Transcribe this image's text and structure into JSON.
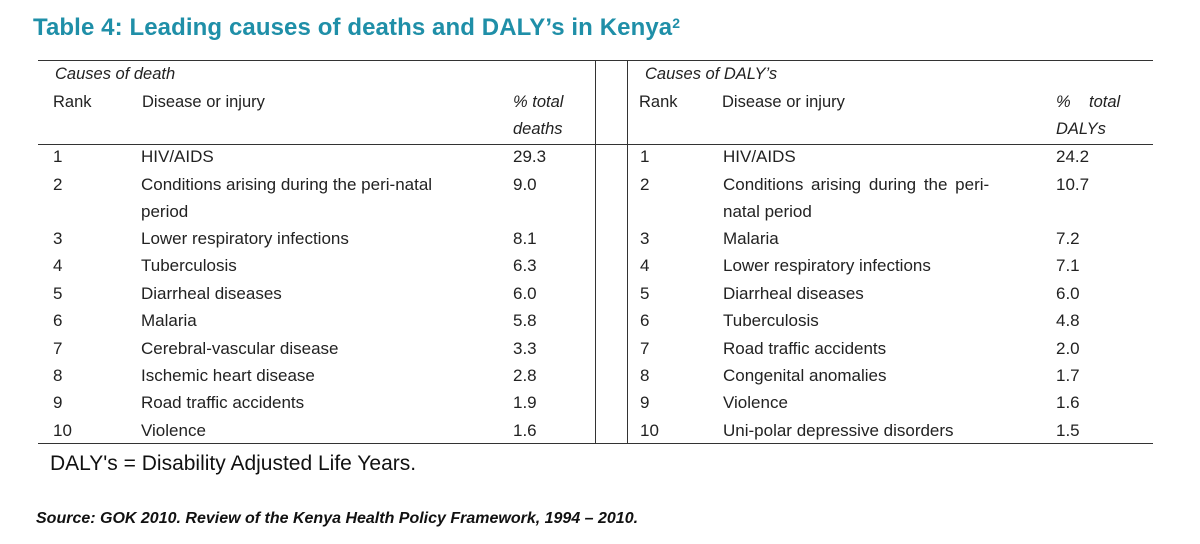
{
  "title": "Table 4: Leading causes of deaths and DALY’s in Kenya",
  "title_sup": "2",
  "left": {
    "section": "Causes of death",
    "col_rank": "Rank",
    "col_disease": "Disease or injury",
    "col_pct_1": "% total",
    "col_pct_2": "deaths",
    "rows": [
      {
        "rank": "1",
        "disease": "HIV/AIDS",
        "disease2": "",
        "pct": "29.3"
      },
      {
        "rank": "2",
        "disease": "Conditions arising during the peri-natal",
        "disease2": "period",
        "pct": "9.0"
      },
      {
        "rank": "3",
        "disease": "Lower respiratory infections",
        "disease2": "",
        "pct": "8.1"
      },
      {
        "rank": "4",
        "disease": "Tuberculosis",
        "disease2": "",
        "pct": "6.3"
      },
      {
        "rank": "5",
        "disease": "Diarrheal diseases",
        "disease2": "",
        "pct": "6.0"
      },
      {
        "rank": "6",
        "disease": "Malaria",
        "disease2": "",
        "pct": "5.8"
      },
      {
        "rank": "7",
        "disease": "Cerebral-vascular disease",
        "disease2": "",
        "pct": "3.3"
      },
      {
        "rank": "8",
        "disease": "Ischemic heart disease",
        "disease2": "",
        "pct": "2.8"
      },
      {
        "rank": "9",
        "disease": "Road traffic accidents",
        "disease2": "",
        "pct": "1.9"
      },
      {
        "rank": "10",
        "disease": "Violence",
        "disease2": "",
        "pct": "1.6"
      }
    ]
  },
  "right": {
    "section": "Causes of DALY’s",
    "col_rank": "Rank",
    "col_disease": "Disease or injury",
    "col_pct_1": "%    total",
    "col_pct_2": "DALYs",
    "rows": [
      {
        "rank": "1",
        "disease": "HIV/AIDS",
        "disease2": "",
        "pct": "24.2"
      },
      {
        "rank": "2",
        "disease": "Conditions arising during the peri-",
        "disease2": "natal period",
        "pct": "10.7"
      },
      {
        "rank": "3",
        "disease": "Malaria",
        "disease2": "",
        "pct": "7.2"
      },
      {
        "rank": "4",
        "disease": "Lower respiratory infections",
        "disease2": "",
        "pct": "7.1"
      },
      {
        "rank": "5",
        "disease": "Diarrheal diseases",
        "disease2": "",
        "pct": "6.0"
      },
      {
        "rank": "6",
        "disease": "Tuberculosis",
        "disease2": "",
        "pct": "4.8"
      },
      {
        "rank": "7",
        "disease": "Road traffic accidents",
        "disease2": "",
        "pct": "2.0"
      },
      {
        "rank": "8",
        "disease": "Congenital anomalies",
        "disease2": "",
        "pct": "1.7"
      },
      {
        "rank": "9",
        "disease": "Violence",
        "disease2": "",
        "pct": "1.6"
      },
      {
        "rank": "10",
        "disease": "Uni-polar depressive disorders",
        "disease2": "",
        "pct": "1.5"
      }
    ]
  },
  "footnote": "DALY's = Disability Adjusted Life Years.",
  "source": "Source: GOK 2010. Review of the Kenya Health Policy Framework, 1994 – 2010."
}
